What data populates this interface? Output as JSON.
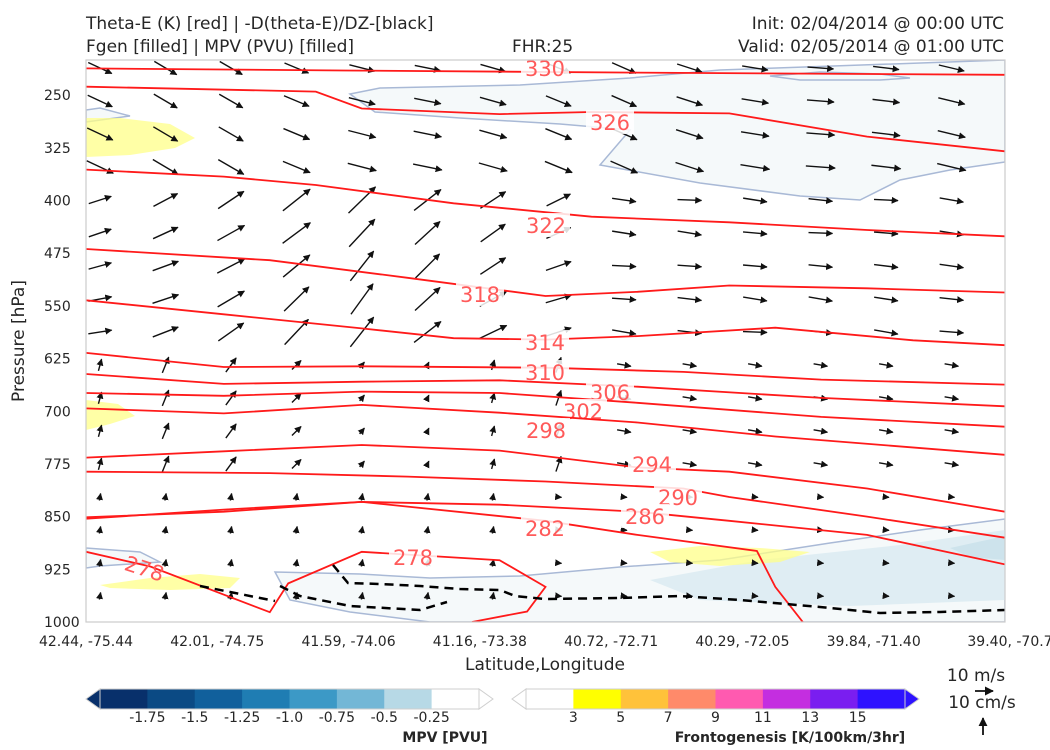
{
  "header": {
    "title_line1": "Theta-E (K) [red] | -D(theta-E)/DZ-[black]",
    "title_line2": "Fgen [filled] | MPV (PVU) [filled]",
    "fhr": "FHR:25",
    "init": "Init: 02/04/2014 @ 00:00 UTC",
    "valid": "Valid: 02/05/2014 @ 01:00 UTC"
  },
  "chart_data": {
    "type": "cross-section",
    "xlabel": "Latitude,Longitude",
    "ylabel": "Pressure [hPa]",
    "x_ticks": [
      "42.44, -75.44",
      "42.01, -74.75",
      "41.59, -74.06",
      "41.16, -73.38",
      "40.72, -72.71",
      "40.29, -72.05",
      "39.84, -71.40",
      "39.40, -70.7"
    ],
    "y_ticks": [
      "250",
      "325",
      "400",
      "475",
      "550",
      "625",
      "700",
      "775",
      "850",
      "925",
      "1000"
    ],
    "ylim": [
      1000,
      200
    ],
    "theta_e_contours": [
      {
        "value": 330,
        "label": "330",
        "points": [
          [
            0,
            212
          ],
          [
            0.28,
            215
          ],
          [
            0.6,
            218
          ],
          [
            1,
            221
          ]
        ]
      },
      {
        "value": 326,
        "label": "326",
        "points": [
          [
            0,
            238
          ],
          [
            0.25,
            245
          ],
          [
            0.3,
            269
          ],
          [
            0.45,
            277
          ],
          [
            0.55,
            274
          ],
          [
            0.7,
            276
          ],
          [
            0.85,
            309
          ],
          [
            1,
            330
          ]
        ]
      },
      {
        "value": 322,
        "label": "322",
        "points": [
          [
            0,
            356
          ],
          [
            0.15,
            366
          ],
          [
            0.25,
            378
          ],
          [
            0.4,
            404
          ],
          [
            0.55,
            423
          ],
          [
            0.7,
            431
          ],
          [
            0.85,
            442
          ],
          [
            1,
            451
          ]
        ]
      },
      {
        "value": 318,
        "label": "318",
        "points": [
          [
            0,
            469
          ],
          [
            0.2,
            485
          ],
          [
            0.35,
            510
          ],
          [
            0.5,
            536
          ],
          [
            0.6,
            530
          ],
          [
            0.7,
            521
          ],
          [
            0.85,
            525
          ],
          [
            1,
            531
          ]
        ]
      },
      {
        "value": 314,
        "label": "314",
        "points": [
          [
            0,
            542
          ],
          [
            0.15,
            562
          ],
          [
            0.3,
            582
          ],
          [
            0.4,
            596
          ],
          [
            0.5,
            598
          ],
          [
            0.6,
            593
          ],
          [
            0.75,
            581
          ],
          [
            0.9,
            599
          ],
          [
            1,
            606
          ]
        ]
      },
      {
        "value": 310,
        "label": "310",
        "points": [
          [
            0,
            617
          ],
          [
            0.15,
            637
          ],
          [
            0.3,
            636
          ],
          [
            0.5,
            638
          ],
          [
            0.65,
            644
          ],
          [
            0.8,
            655
          ],
          [
            1,
            662
          ]
        ]
      },
      {
        "value": 306,
        "label": "306",
        "points": [
          [
            0,
            647
          ],
          [
            0.15,
            661
          ],
          [
            0.3,
            658
          ],
          [
            0.45,
            656
          ],
          [
            0.6,
            665
          ],
          [
            0.8,
            681
          ],
          [
            1,
            693
          ]
        ]
      },
      {
        "value": 302,
        "label": "302",
        "points": [
          [
            0,
            674
          ],
          [
            0.15,
            678
          ],
          [
            0.3,
            672
          ],
          [
            0.45,
            674
          ],
          [
            0.6,
            688
          ],
          [
            0.8,
            708
          ],
          [
            1,
            722
          ]
        ]
      },
      {
        "value": 298,
        "label": "298",
        "points": [
          [
            0,
            696
          ],
          [
            0.15,
            703
          ],
          [
            0.3,
            691
          ],
          [
            0.45,
            702
          ],
          [
            0.6,
            716
          ],
          [
            0.75,
            736
          ],
          [
            1,
            762
          ]
        ]
      },
      {
        "value": 294,
        "label": "294",
        "points": [
          [
            0,
            766
          ],
          [
            0.15,
            757
          ],
          [
            0.3,
            748
          ],
          [
            0.45,
            756
          ],
          [
            0.6,
            780
          ],
          [
            0.7,
            786
          ],
          [
            0.85,
            810
          ],
          [
            1,
            843
          ]
        ]
      },
      {
        "value": 290,
        "label": "290",
        "points": [
          [
            0,
            786
          ],
          [
            0.2,
            788
          ],
          [
            0.35,
            793
          ],
          [
            0.5,
            800
          ],
          [
            0.65,
            810
          ],
          [
            0.7,
            822
          ],
          [
            0.85,
            850
          ],
          [
            1,
            880
          ]
        ]
      },
      {
        "value": 286,
        "label": "286",
        "points": [
          [
            0,
            853
          ],
          [
            0.15,
            840
          ],
          [
            0.3,
            829
          ],
          [
            0.45,
            833
          ],
          [
            0.6,
            843
          ],
          [
            0.7,
            856
          ],
          [
            0.85,
            876
          ],
          [
            1,
            918
          ]
        ]
      },
      {
        "value": 282,
        "label": "282",
        "points": [
          [
            0,
            851
          ],
          [
            0.15,
            843
          ],
          [
            0.3,
            829
          ],
          [
            0.5,
            856
          ],
          [
            0.6,
            876
          ],
          [
            0.73,
            899
          ],
          [
            0.75,
            950
          ],
          [
            0.78,
            1000
          ]
        ]
      },
      {
        "value": 278,
        "label": "278",
        "points": [
          [
            0,
            900
          ],
          [
            0.07,
            921
          ],
          [
            0.2,
            986
          ],
          [
            0.22,
            945
          ],
          [
            0.3,
            900
          ],
          [
            0.45,
            912
          ],
          [
            0.5,
            950
          ],
          [
            0.48,
            985
          ],
          [
            0.42,
            1000
          ]
        ]
      }
    ],
    "mpv_colorbar": {
      "label": "MPV [PVU]",
      "ticks": [
        "-1.75",
        "-1.5",
        "-1.25",
        "-1.0",
        "-0.75",
        "-0.5",
        "-0.25"
      ],
      "colors": [
        "#08306b",
        "#0b4a84",
        "#11609c",
        "#1f7db3",
        "#3c99c6",
        "#73b7d6",
        "#b7d9e6",
        "#ffffff"
      ]
    },
    "fgen_colorbar": {
      "label": "Frontogenesis [K/100km/3hr]",
      "ticks": [
        "3",
        "5",
        "7",
        "9",
        "11",
        "13",
        "15"
      ],
      "colors": [
        "#ffffff",
        "#ffff00",
        "#ffc23a",
        "#ff8a6a",
        "#ff5ab0",
        "#c42ee0",
        "#7a1ef0",
        "#2e12ff"
      ]
    },
    "vector_key": {
      "horizontal": "10 m/s",
      "vertical": "10 cm/s"
    }
  }
}
